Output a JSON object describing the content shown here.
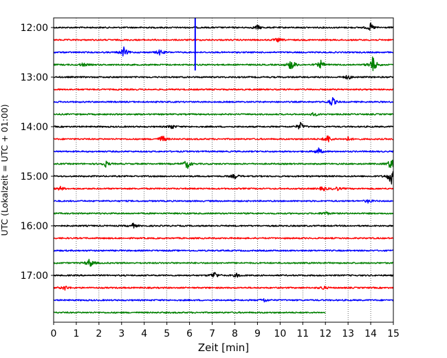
{
  "chart_data": {
    "type": "line",
    "title": "",
    "xlabel": "Zeit  [min]",
    "ylabel": "UTC (Lokalzeit = UTC + 01:00)",
    "xlim": [
      0,
      15
    ],
    "x_ticks": [
      "0",
      "1",
      "2",
      "3",
      "4",
      "5",
      "6",
      "7",
      "8",
      "9",
      "10",
      "11",
      "12",
      "13",
      "14",
      "15"
    ],
    "y_ticks": [
      "12:00",
      "13:00",
      "14:00",
      "15:00",
      "16:00",
      "17:00"
    ],
    "grid": "vertical dotted",
    "trace_interval_min": 15,
    "trace_colors": [
      "#000000",
      "#ff0000",
      "#0000ff",
      "#008000"
    ],
    "traces": [
      {
        "start": "12:00",
        "end_min": 15,
        "events": [
          [
            9.0,
            0.5
          ],
          [
            14.0,
            0.8
          ]
        ]
      },
      {
        "start": "12:15",
        "end_min": 15,
        "events": [
          [
            9.9,
            0.4
          ]
        ]
      },
      {
        "start": "12:30",
        "end_min": 15,
        "events": [
          [
            3.1,
            1.0
          ],
          [
            4.7,
            0.6
          ]
        ]
      },
      {
        "start": "12:45",
        "end_min": 15,
        "events": [
          [
            1.3,
            0.4
          ],
          [
            10.5,
            1.3
          ],
          [
            11.8,
            0.8
          ],
          [
            14.1,
            1.8
          ]
        ]
      },
      {
        "start": "13:00",
        "end_min": 15,
        "events": [
          [
            13.0,
            0.5
          ]
        ]
      },
      {
        "start": "13:15",
        "end_min": 15,
        "events": []
      },
      {
        "start": "13:30",
        "end_min": 15,
        "events": [
          [
            12.3,
            1.0
          ]
        ]
      },
      {
        "start": "13:45",
        "end_min": 15,
        "events": [
          [
            11.5,
            0.4
          ]
        ]
      },
      {
        "start": "14:00",
        "end_min": 15,
        "events": [
          [
            5.2,
            0.5
          ],
          [
            10.9,
            0.8
          ]
        ]
      },
      {
        "start": "14:15",
        "end_min": 15,
        "events": [
          [
            4.8,
            0.8
          ],
          [
            12.1,
            0.9
          ],
          [
            13.0,
            0.4
          ]
        ]
      },
      {
        "start": "14:30",
        "end_min": 15,
        "events": [
          [
            11.7,
            0.7
          ]
        ]
      },
      {
        "start": "14:45",
        "end_min": 15,
        "events": [
          [
            2.3,
            0.6
          ],
          [
            5.9,
            1.0
          ],
          [
            14.9,
            1.2
          ]
        ]
      },
      {
        "start": "15:00",
        "end_min": 15,
        "events": [
          [
            8.0,
            0.5
          ],
          [
            14.9,
            1.8
          ]
        ]
      },
      {
        "start": "15:15",
        "end_min": 15,
        "events": [
          [
            0.3,
            0.4
          ],
          [
            11.9,
            0.5
          ],
          [
            12.5,
            0.4
          ]
        ]
      },
      {
        "start": "15:30",
        "end_min": 15,
        "events": [
          [
            13.9,
            0.4
          ]
        ]
      },
      {
        "start": "15:45",
        "end_min": 15,
        "events": [
          [
            12.0,
            0.4
          ]
        ]
      },
      {
        "start": "16:00",
        "end_min": 15,
        "events": [
          [
            3.5,
            0.5
          ]
        ]
      },
      {
        "start": "16:15",
        "end_min": 15,
        "events": []
      },
      {
        "start": "16:30",
        "end_min": 15,
        "events": []
      },
      {
        "start": "16:45",
        "end_min": 15,
        "events": [
          [
            1.6,
            1.0
          ]
        ]
      },
      {
        "start": "17:00",
        "end_min": 15,
        "events": [
          [
            7.1,
            0.8
          ],
          [
            8.1,
            0.4
          ]
        ]
      },
      {
        "start": "17:15",
        "end_min": 15,
        "events": [
          [
            0.5,
            0.5
          ],
          [
            11.9,
            0.4
          ]
        ]
      },
      {
        "start": "17:30",
        "end_min": 15,
        "events": [
          [
            9.3,
            0.4
          ]
        ]
      },
      {
        "start": "17:45",
        "end_min": 12,
        "events": []
      }
    ],
    "spikes": [
      {
        "time": "12:00",
        "x": 6.25,
        "color": "#0000ff",
        "to": "12:52"
      }
    ]
  }
}
